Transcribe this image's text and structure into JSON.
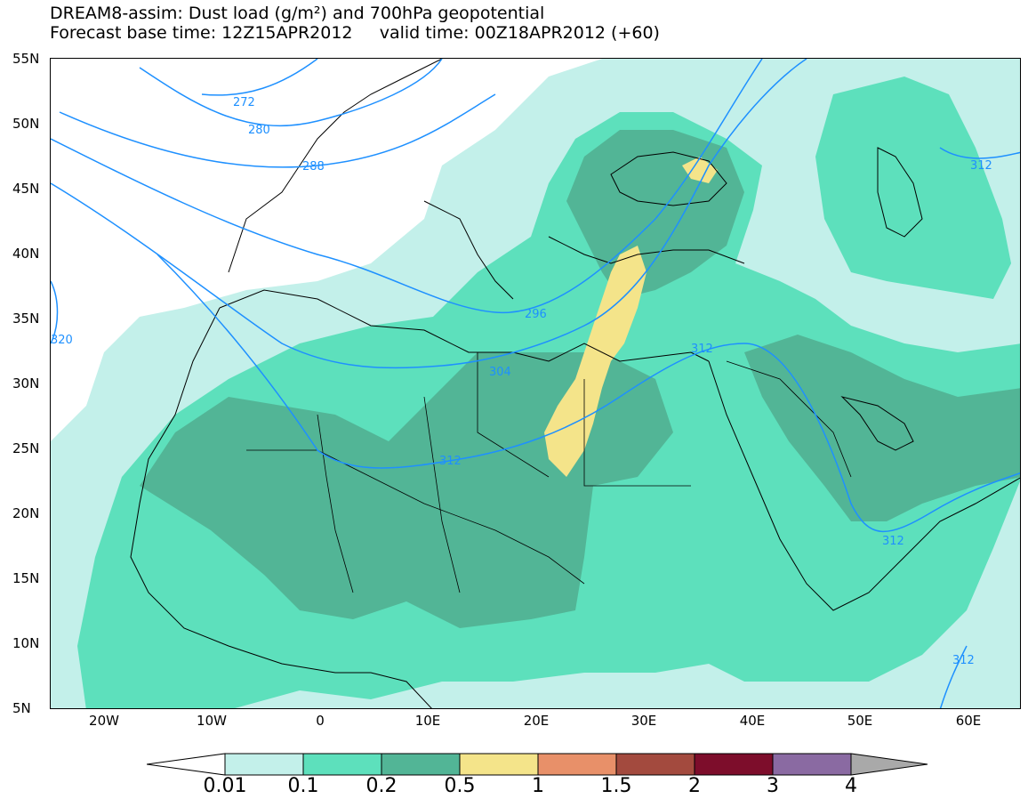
{
  "title": {
    "line1": "DREAM8-assim: Dust load (g/m²) and 700hPa geopotential",
    "line2": "Forecast base time: 12Z15APR2012     valid time: 00Z18APR2012 (+60)"
  },
  "axes": {
    "lat_labels": [
      "55N",
      "50N",
      "45N",
      "40N",
      "35N",
      "30N",
      "25N",
      "20N",
      "15N",
      "10N",
      "5N"
    ],
    "lon_labels": [
      "20W",
      "10W",
      "0",
      "10E",
      "20E",
      "30E",
      "40E",
      "50E",
      "60E"
    ]
  },
  "colorbar": {
    "labels": [
      "0.01",
      "0.1",
      "0.2",
      "0.5",
      "1",
      "1.5",
      "2",
      "3",
      "4"
    ],
    "colors": [
      "#c3f0ea",
      "#5de0bc",
      "#52b596",
      "#f4e48a",
      "#e89069",
      "#a34a3e",
      "#7d0d2b",
      "#8a6aa2"
    ]
  },
  "contours": {
    "color": "#1e90ff",
    "labels": [
      "272",
      "280",
      "288",
      "296",
      "304",
      "312",
      "312",
      "312",
      "312",
      "312",
      "320"
    ]
  }
}
